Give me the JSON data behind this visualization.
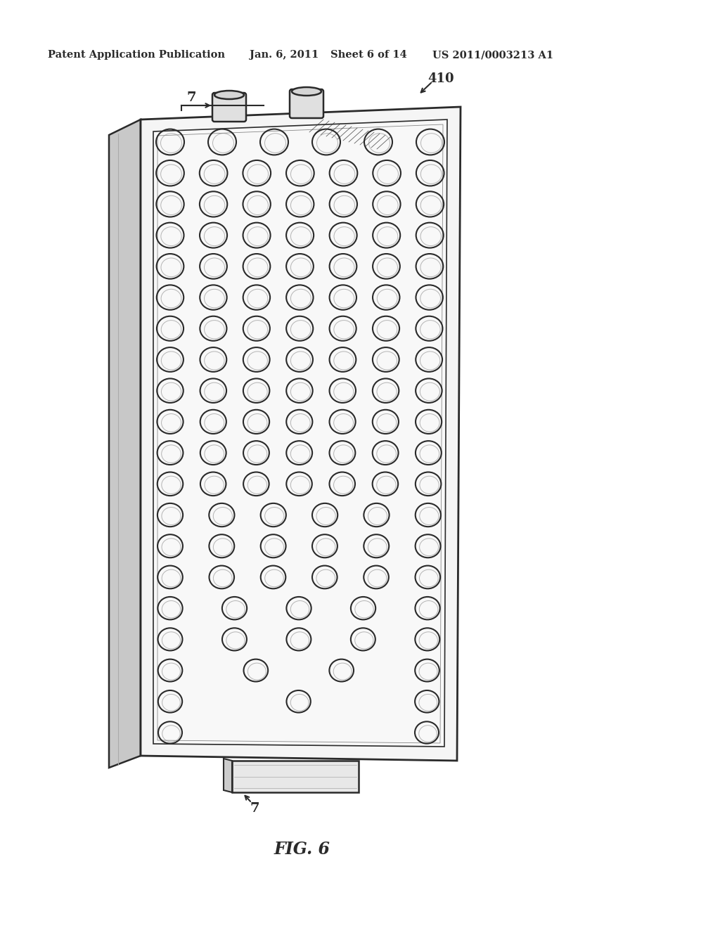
{
  "bg_color": "#ffffff",
  "line_color": "#2a2a2a",
  "header_text": "Patent Application Publication",
  "header_date": "Jan. 6, 2011",
  "header_sheet": "Sheet 6 of 14",
  "header_patent": "US 2011/0003213 A1",
  "fig_label": "FIG. 6",
  "label_7_top": "7",
  "label_7_bottom": "7",
  "label_410": "410",
  "figsize": [
    10.24,
    13.2
  ],
  "dpi": 100
}
